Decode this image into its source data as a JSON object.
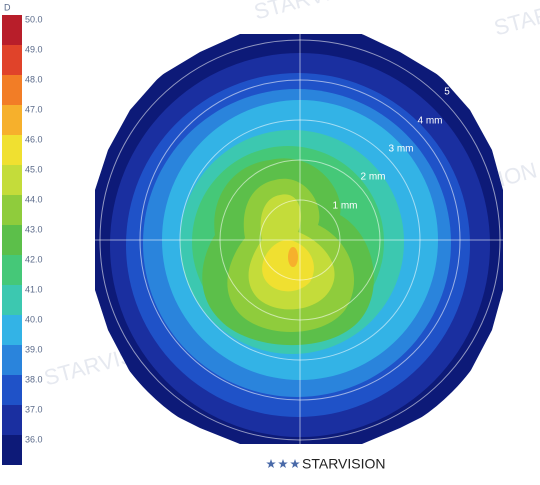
{
  "legend": {
    "unit": "D",
    "levels": [
      {
        "label": "50.0",
        "color": "#b81e2a"
      },
      {
        "label": "49.0",
        "color": "#e0432a"
      },
      {
        "label": "48.0",
        "color": "#f27d26"
      },
      {
        "label": "47.0",
        "color": "#f6b02c"
      },
      {
        "label": "46.0",
        "color": "#f0e030"
      },
      {
        "label": "45.0",
        "color": "#c4dc3a"
      },
      {
        "label": "44.0",
        "color": "#8fcc3c"
      },
      {
        "label": "43.0",
        "color": "#5cbf4a"
      },
      {
        "label": "42.0",
        "color": "#45c878"
      },
      {
        "label": "41.0",
        "color": "#3cc8b0"
      },
      {
        "label": "40.0",
        "color": "#33b3e6"
      },
      {
        "label": "39.0",
        "color": "#2a84dc"
      },
      {
        "label": "38.0",
        "color": "#1f52c8"
      },
      {
        "label": "37.0",
        "color": "#1a2fa0"
      },
      {
        "label": "36.0",
        "color": "#0d1a78"
      }
    ]
  },
  "rings": [
    "1 mm",
    "2 mm",
    "3 mm",
    "4 mm",
    "5"
  ],
  "watermark": "STARVISION",
  "brand": "STARVISION"
}
